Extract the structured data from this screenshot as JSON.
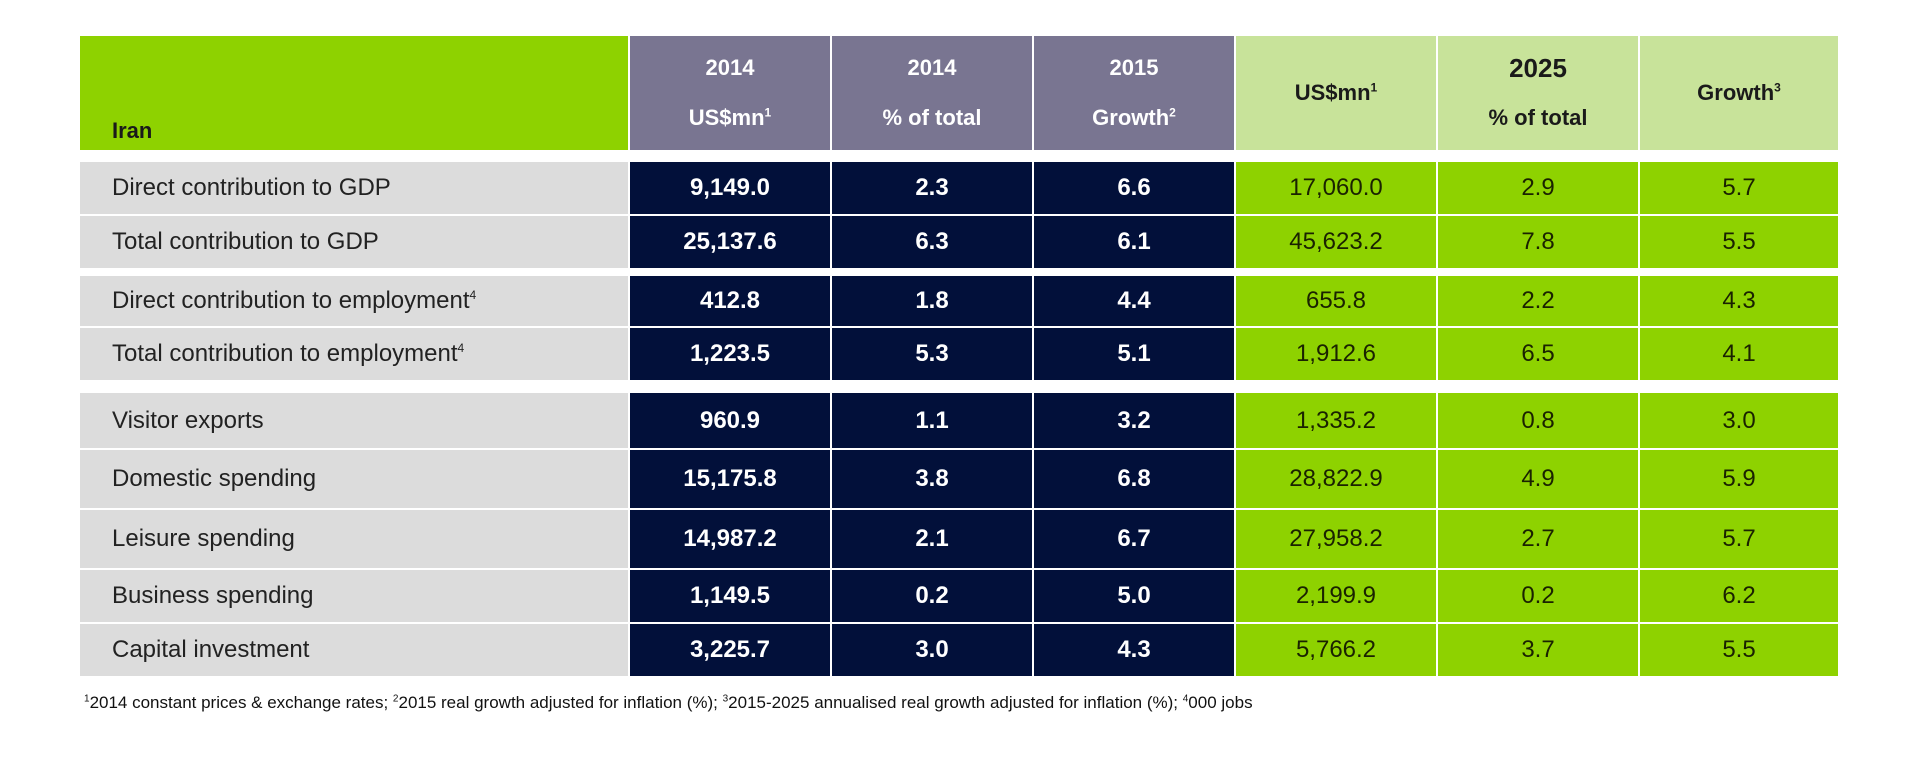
{
  "colors": {
    "header_green": "#8ed200",
    "header_purple": "#797591",
    "header_light_green": "#c8e39a",
    "label_bg": "#dcdcdc",
    "navy": "#02103a",
    "data_green": "#8ed200"
  },
  "chart_data": {
    "type": "table",
    "title": "Iran",
    "column_groups": [
      {
        "year": "2014",
        "columns": [
          "US$mn",
          "% of total"
        ]
      },
      {
        "year": "2015",
        "columns": [
          "Growth"
        ]
      },
      {
        "year": "2025",
        "columns": [
          "US$mn",
          "% of total",
          "Growth"
        ]
      }
    ],
    "headers": [
      {
        "top": "2014",
        "bottom": "US$mn",
        "sup": "1"
      },
      {
        "top": "2014",
        "bottom": "% of total",
        "sup": ""
      },
      {
        "top": "2015",
        "bottom": "Growth",
        "sup": "2"
      },
      {
        "top": "",
        "bottom": "US$mn",
        "sup": "1"
      },
      {
        "top": "2025",
        "bottom": "% of total",
        "sup": ""
      },
      {
        "top": "",
        "bottom": "Growth",
        "sup": "3"
      }
    ],
    "rows": [
      {
        "label": "Direct contribution to GDP",
        "sup": "",
        "values": [
          "9,149.0",
          "2.3",
          "6.6",
          "17,060.0",
          "2.9",
          "5.7"
        ]
      },
      {
        "label": "Total contribution to GDP",
        "sup": "",
        "values": [
          "25,137.6",
          "6.3",
          "6.1",
          "45,623.2",
          "7.8",
          "5.5"
        ]
      },
      {
        "label": "Direct contribution to employment",
        "sup": "4",
        "values": [
          "412.8",
          "1.8",
          "4.4",
          "655.8",
          "2.2",
          "4.3"
        ]
      },
      {
        "label": "Total contribution to employment",
        "sup": "4",
        "values": [
          "1,223.5",
          "5.3",
          "5.1",
          "1,912.6",
          "6.5",
          "4.1"
        ]
      },
      {
        "label": "Visitor exports",
        "sup": "",
        "values": [
          "960.9",
          "1.1",
          "3.2",
          "1,335.2",
          "0.8",
          "3.0"
        ]
      },
      {
        "label": "Domestic spending",
        "sup": "",
        "values": [
          "15,175.8",
          "3.8",
          "6.8",
          "28,822.9",
          "4.9",
          "5.9"
        ]
      },
      {
        "label": "Leisure spending",
        "sup": "",
        "values": [
          "14,987.2",
          "2.1",
          "6.7",
          "27,958.2",
          "2.7",
          "5.7"
        ]
      },
      {
        "label": "Business spending",
        "sup": "",
        "values": [
          "1,149.5",
          "0.2",
          "5.0",
          "2,199.9",
          "0.2",
          "6.2"
        ]
      },
      {
        "label": "Capital investment",
        "sup": "",
        "values": [
          "3,225.7",
          "3.0",
          "4.3",
          "5,766.2",
          "3.7",
          "5.5"
        ]
      }
    ],
    "footnote": [
      {
        "sup": "1",
        "text": "2014 constant prices & exchange rates; "
      },
      {
        "sup": "2",
        "text": "2015 real growth adjusted for inflation (%); "
      },
      {
        "sup": "3",
        "text": "2015-2025 annualised real growth adjusted for inflation (%); "
      },
      {
        "sup": "4",
        "text": "000 jobs"
      }
    ]
  }
}
